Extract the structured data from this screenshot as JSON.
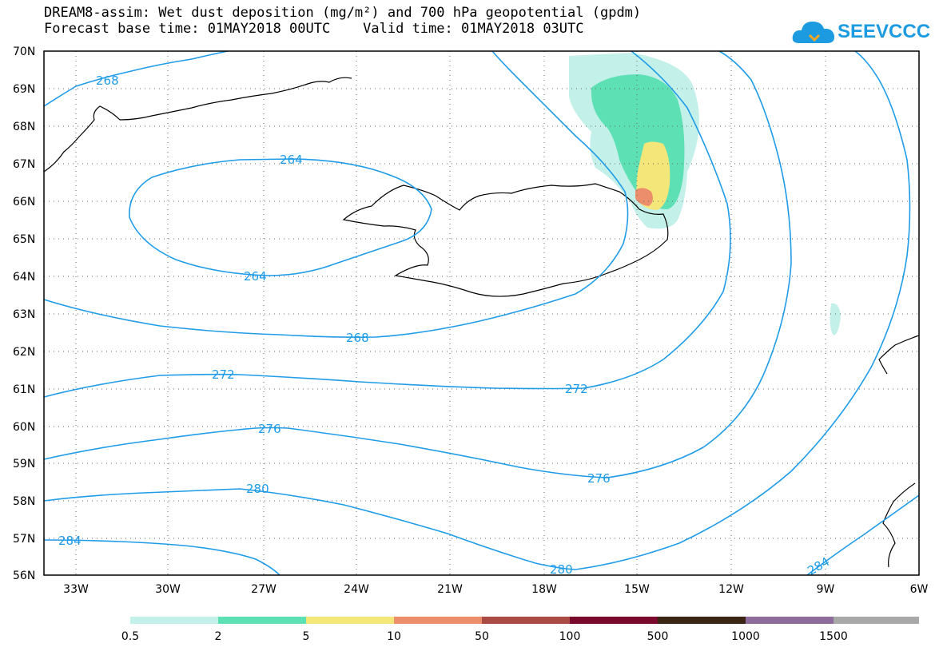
{
  "header": {
    "title_line1": "DREAM8-assim: Wet dust deposition (mg/m²) and 700 hPa geopotential (gpdm)",
    "title_line2": "Forecast base time: 01MAY2018 00UTC    Valid time: 01MAY2018 03UTC"
  },
  "logo": {
    "text": "SEEVCCC",
    "icon": "cloud-icon",
    "color": "#1d9be0"
  },
  "map": {
    "lon_labels": [
      "33W",
      "30W",
      "27W",
      "24W",
      "21W",
      "18W",
      "15W",
      "12W",
      "9W",
      "6W"
    ],
    "lat_labels": [
      "70N",
      "69N",
      "68N",
      "67N",
      "66N",
      "65N",
      "64N",
      "63N",
      "62N",
      "61N",
      "60N",
      "59N",
      "58N",
      "57N",
      "56N"
    ],
    "contour_color": "#1e9ce8",
    "contour_labels": [
      "268",
      "264",
      "264",
      "268",
      "272",
      "272",
      "276",
      "276",
      "280",
      "280",
      "284",
      "284"
    ]
  },
  "legend": {
    "labels": [
      "0.5",
      "2",
      "5",
      "10",
      "50",
      "100",
      "500",
      "1000",
      "1500"
    ],
    "colors": [
      "#c3f0e8",
      "#5ee0b5",
      "#f5e67a",
      "#ec8d6b",
      "#a94a43",
      "#7a0a2d",
      "#3b2616",
      "#8d6c9c",
      "#a8a8a8"
    ]
  }
}
